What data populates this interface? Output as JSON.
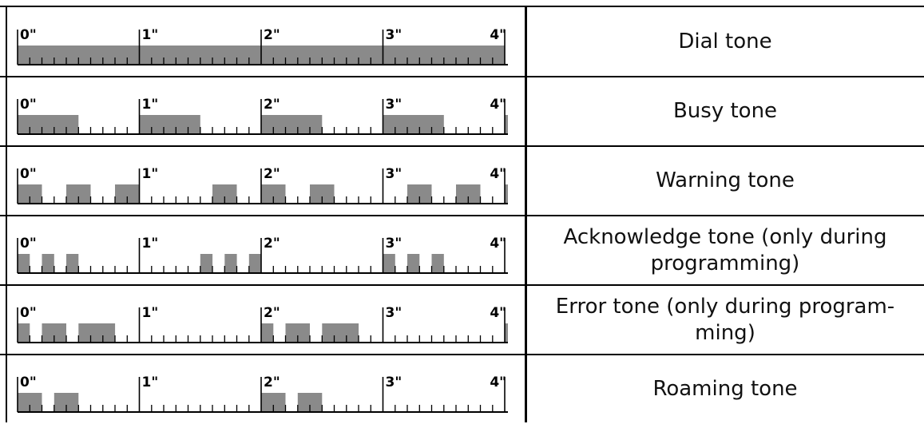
{
  "timeline": {
    "labels": [
      "0\"",
      "1\"",
      "2\"",
      "3\"",
      "4\""
    ],
    "duration_seconds": 4,
    "tick_step_seconds": 0.1,
    "pulse_color": "#8a8a8a",
    "line_color": "#000000"
  },
  "tones": [
    {
      "name": "Dial tone",
      "on": [
        [
          0,
          4
        ]
      ]
    },
    {
      "name": "Busy tone",
      "on": [
        [
          0,
          0.5
        ],
        [
          1,
          1.5
        ],
        [
          2,
          2.5
        ],
        [
          3,
          3.5
        ],
        [
          4,
          4
        ]
      ]
    },
    {
      "name": "Warning tone",
      "on": [
        [
          0,
          0.2
        ],
        [
          0.4,
          0.6
        ],
        [
          0.8,
          1.0
        ],
        [
          1.6,
          1.8
        ],
        [
          2.0,
          2.2
        ],
        [
          2.4,
          2.6
        ],
        [
          3.2,
          3.4
        ],
        [
          3.6,
          3.8
        ],
        [
          4.0,
          4.0
        ]
      ]
    },
    {
      "name": "Acknowledge tone (only during programming)",
      "on": [
        [
          0,
          0.1
        ],
        [
          0.2,
          0.3
        ],
        [
          0.4,
          0.5
        ],
        [
          1.5,
          1.6
        ],
        [
          1.7,
          1.8
        ],
        [
          1.9,
          2.0
        ],
        [
          3.0,
          3.1
        ],
        [
          3.2,
          3.3
        ],
        [
          3.4,
          3.5
        ]
      ]
    },
    {
      "name": "Error tone (only during program-ming)",
      "on": [
        [
          0,
          0.1
        ],
        [
          0.2,
          0.4
        ],
        [
          0.5,
          0.8
        ],
        [
          2.0,
          2.1
        ],
        [
          2.2,
          2.4
        ],
        [
          2.5,
          2.8
        ],
        [
          4.0,
          4.1
        ]
      ]
    },
    {
      "name": "Roaming tone",
      "on": [
        [
          0,
          0.2
        ],
        [
          0.3,
          0.5
        ],
        [
          2.0,
          2.2
        ],
        [
          2.3,
          2.5
        ]
      ]
    }
  ]
}
